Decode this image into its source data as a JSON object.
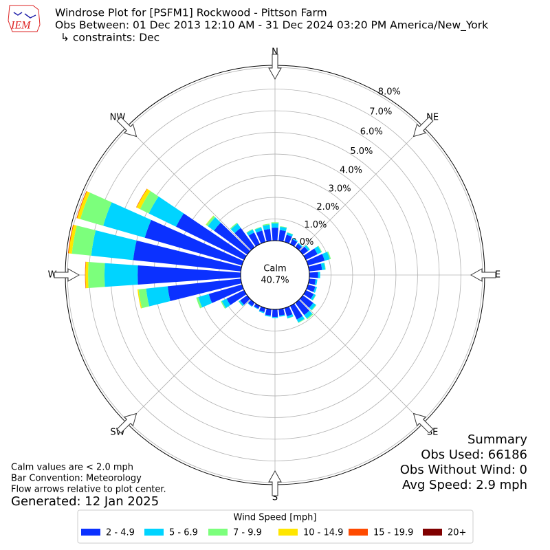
{
  "logo": "IEM",
  "chart_data": {
    "type": "windrose",
    "title": "Windrose Plot for [PSFM1] Rockwood - Pittson Farm",
    "subtitle": "Obs Between: 01 Dec 2013 12:10 AM - 31 Dec 2024 03:20 PM America/New_York",
    "constraints": "↳ constraints: Dec",
    "directions": [
      "N",
      "NE",
      "E",
      "SE",
      "S",
      "SW",
      "W",
      "NW"
    ],
    "calm_label": "Calm",
    "calm_value": "40.7%",
    "categories": [
      null,
      null,
      null,
      null,
      null,
      null,
      null,
      null,
      null,
      null,
      null,
      null,
      null,
      null,
      null,
      null,
      null,
      null,
      null,
      null,
      null,
      null,
      null,
      null,
      null,
      null,
      null,
      null,
      null,
      null,
      null,
      null,
      null,
      null,
      null,
      null
    ],
    "ylim": [
      0,
      8.1
    ],
    "yticks": [
      {
        "value": 0,
        "label": "0.0%"
      },
      {
        "value": 1,
        "label": "1.0%"
      },
      {
        "value": 2,
        "label": "2.0%"
      },
      {
        "value": 3,
        "label": "3.0%"
      },
      {
        "value": 4,
        "label": "4.0%"
      },
      {
        "value": 5,
        "label": "5.0%"
      },
      {
        "value": 6,
        "label": "6.0%"
      },
      {
        "value": 7,
        "label": "7.0%"
      },
      {
        "value": 8,
        "label": "8.0%"
      }
    ],
    "grid": true,
    "legend_title": "Wind Speed [mph]",
    "series": [
      {
        "name": "2 - 4.9",
        "color": "#0b31ff",
        "values": [
          0.6,
          0.5,
          0.35,
          0.25,
          0.2,
          0.3,
          0.6,
          0.8,
          0.6,
          0.4,
          0.3,
          0.35,
          0.4,
          0.6,
          0.7,
          0.7,
          0.4,
          0.3,
          0.35,
          0.3,
          0.2,
          0.15,
          0.2,
          0.4,
          0.9,
          1.6,
          3.4,
          4.76,
          5.0,
          4.67,
          3.5,
          1.9,
          1.1,
          0.6,
          0.55,
          0.55
        ]
      },
      {
        "name": "5 - 6.9",
        "color": "#00d4ff",
        "values": [
          0.2,
          0.15,
          0.1,
          0.05,
          0.05,
          0.1,
          0.2,
          0.25,
          0.15,
          0.1,
          0.08,
          0.08,
          0.1,
          0.15,
          0.2,
          0.15,
          0.1,
          0.05,
          0.05,
          0.05,
          0.05,
          0.03,
          0.03,
          0.08,
          0.25,
          0.5,
          1.0,
          1.53,
          1.95,
          2.0,
          1.4,
          0.35,
          0.25,
          0.15,
          0.15,
          0.2
        ]
      },
      {
        "name": "7 - 9.9",
        "color": "#7cff7c",
        "values": [
          0.05,
          0.03,
          0.02,
          0,
          0,
          0.02,
          0.03,
          0.05,
          0.02,
          0,
          0,
          0,
          0.02,
          0.03,
          0.05,
          0.03,
          0.01,
          0,
          0,
          0,
          0,
          0,
          0,
          0.02,
          0.05,
          0.1,
          0.35,
          0.76,
          0.9,
          1.1,
          0.45,
          0.1,
          0.05,
          0.03,
          0.03,
          0.05
        ]
      },
      {
        "name": "10 - 14.9",
        "color": "#ffe600",
        "values": [
          0,
          0,
          0,
          0,
          0,
          0,
          0,
          0,
          0,
          0,
          0,
          0,
          0,
          0,
          0,
          0,
          0,
          0,
          0,
          0,
          0,
          0,
          0,
          0,
          0,
          0,
          0.05,
          0.12,
          0.15,
          0.15,
          0.18,
          0.02,
          0,
          0,
          0,
          0
        ]
      },
      {
        "name": "15 - 19.9",
        "color": "#ff4a00",
        "values": [
          0,
          0,
          0,
          0,
          0,
          0,
          0,
          0,
          0,
          0,
          0,
          0,
          0,
          0,
          0,
          0,
          0,
          0,
          0,
          0,
          0,
          0,
          0,
          0,
          0,
          0,
          0,
          0.02,
          0.03,
          0.03,
          0.02,
          0,
          0,
          0,
          0,
          0
        ]
      },
      {
        "name": "20+",
        "color": "#800000",
        "values": [
          0,
          0,
          0,
          0,
          0,
          0,
          0,
          0,
          0,
          0,
          0,
          0,
          0,
          0,
          0,
          0,
          0,
          0,
          0,
          0,
          0,
          0,
          0,
          0,
          0,
          0,
          0,
          0,
          0,
          0,
          0,
          0,
          0,
          0,
          0,
          0
        ]
      }
    ],
    "notes": [
      "Calm values are < 2.0 mph",
      "Bar Convention: Meteorology",
      "Flow arrows relative to plot center."
    ],
    "generated": "Generated: 12 Jan 2025",
    "summary": [
      "Summary",
      "Obs Used: 66186",
      "Obs Without Wind: 0",
      "Avg Speed: 2.9 mph"
    ]
  }
}
